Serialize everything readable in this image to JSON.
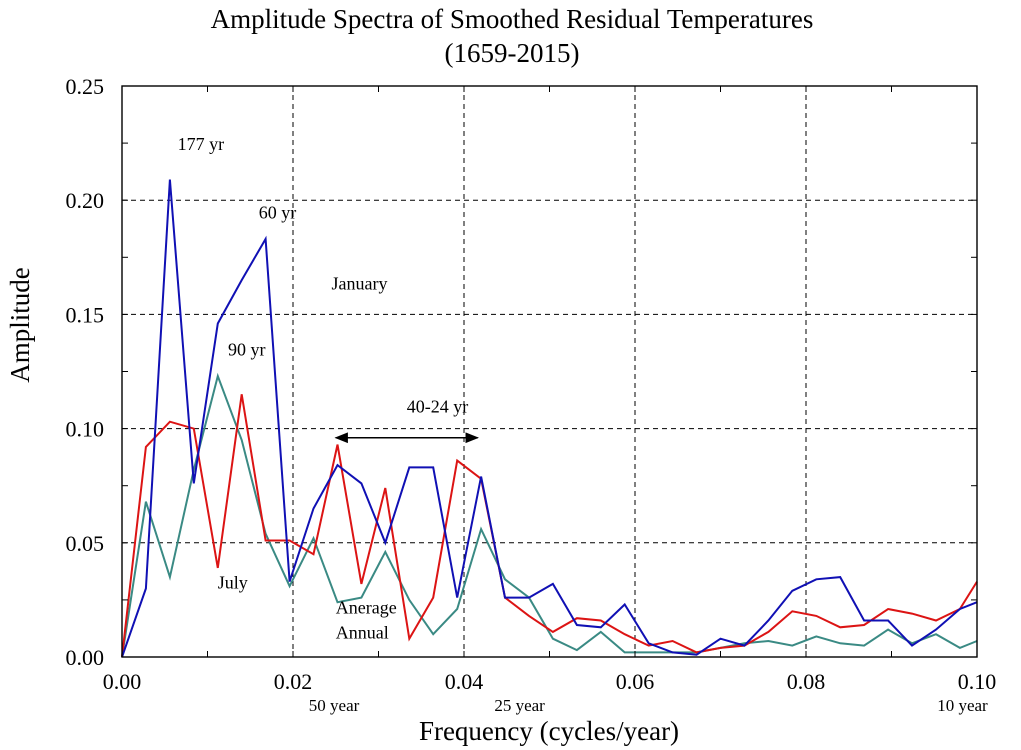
{
  "chart_data": {
    "type": "line",
    "title": "Amplitude Spectra of Smoothed Residual Temperatures",
    "subtitle": "(1659-2015)",
    "xlabel": "Frequency (cycles/year)",
    "ylabel": "Amplitude",
    "xlim": [
      0,
      0.1
    ],
    "ylim": [
      0,
      0.25
    ],
    "grid": true,
    "x_ticks": [
      0.0,
      0.02,
      0.04,
      0.06,
      0.08,
      0.1
    ],
    "x_tick_labels": [
      "0.00",
      "0.02",
      "0.04",
      "0.06",
      "0.08",
      "0.10"
    ],
    "y_ticks": [
      0.0,
      0.05,
      0.1,
      0.15,
      0.2,
      0.25
    ],
    "y_tick_labels": [
      "0.00",
      "0.05",
      "0.10",
      "0.15",
      "0.20",
      "0.25"
    ],
    "series": [
      {
        "name": "January",
        "color": "#1010b4",
        "x": [
          0,
          0.0028,
          0.0056,
          0.0084,
          0.0112,
          0.014,
          0.0168,
          0.0196,
          0.0224,
          0.0252,
          0.028,
          0.0308,
          0.0336,
          0.0364,
          0.0392,
          0.042,
          0.0448,
          0.0476,
          0.0504,
          0.0532,
          0.056,
          0.0588,
          0.0616,
          0.0644,
          0.0672,
          0.07,
          0.0728,
          0.0756,
          0.0784,
          0.0812,
          0.084,
          0.0868,
          0.0896,
          0.0924,
          0.0952,
          0.098,
          0.1
        ],
        "values": [
          0.0,
          0.03,
          0.209,
          0.076,
          0.146,
          0.165,
          0.183,
          0.033,
          0.065,
          0.084,
          0.076,
          0.05,
          0.083,
          0.083,
          0.026,
          0.079,
          0.026,
          0.026,
          0.032,
          0.014,
          0.013,
          0.023,
          0.006,
          0.002,
          0.001,
          0.008,
          0.005,
          0.016,
          0.029,
          0.034,
          0.035,
          0.016,
          0.016,
          0.005,
          0.012,
          0.021,
          0.024
        ]
      },
      {
        "name": "July",
        "color": "#dc1414",
        "x": [
          0,
          0.0028,
          0.0056,
          0.0084,
          0.0112,
          0.014,
          0.0168,
          0.0196,
          0.0224,
          0.0252,
          0.028,
          0.0308,
          0.0336,
          0.0364,
          0.0392,
          0.042,
          0.0448,
          0.0476,
          0.0504,
          0.0532,
          0.056,
          0.0588,
          0.0616,
          0.0644,
          0.0672,
          0.07,
          0.0728,
          0.0756,
          0.0784,
          0.0812,
          0.084,
          0.0868,
          0.0896,
          0.0924,
          0.0952,
          0.098,
          0.1
        ],
        "values": [
          0.0,
          0.092,
          0.103,
          0.1,
          0.039,
          0.115,
          0.051,
          0.051,
          0.045,
          0.093,
          0.032,
          0.074,
          0.008,
          0.026,
          0.086,
          0.078,
          0.026,
          0.018,
          0.011,
          0.017,
          0.016,
          0.01,
          0.005,
          0.007,
          0.002,
          0.004,
          0.005,
          0.011,
          0.02,
          0.018,
          0.013,
          0.014,
          0.021,
          0.019,
          0.016,
          0.021,
          0.033
        ]
      },
      {
        "name": "Anerage Annual",
        "color": "#3a8a84",
        "x": [
          0,
          0.0028,
          0.0056,
          0.0084,
          0.0112,
          0.014,
          0.0168,
          0.0196,
          0.0224,
          0.0252,
          0.028,
          0.0308,
          0.0336,
          0.0364,
          0.0392,
          0.042,
          0.0448,
          0.0476,
          0.0504,
          0.0532,
          0.056,
          0.0588,
          0.0616,
          0.0644,
          0.0672,
          0.07,
          0.0728,
          0.0756,
          0.0784,
          0.0812,
          0.084,
          0.0868,
          0.0896,
          0.0924,
          0.0952,
          0.098,
          0.1
        ],
        "values": [
          0.0,
          0.068,
          0.035,
          0.082,
          0.123,
          0.095,
          0.054,
          0.031,
          0.052,
          0.024,
          0.026,
          0.046,
          0.025,
          0.01,
          0.021,
          0.056,
          0.034,
          0.026,
          0.008,
          0.003,
          0.011,
          0.002,
          0.002,
          0.002,
          0.002,
          0.004,
          0.006,
          0.007,
          0.005,
          0.009,
          0.006,
          0.005,
          0.012,
          0.006,
          0.01,
          0.004,
          0.007
        ]
      }
    ],
    "annotations": [
      {
        "text": "177 yr",
        "x": 0.0065,
        "y": 0.222
      },
      {
        "text": "60 yr",
        "x": 0.016,
        "y": 0.192
      },
      {
        "text": "90 yr",
        "x": 0.0124,
        "y": 0.132
      },
      {
        "text": "40-24 yr",
        "x": 0.0333,
        "y": 0.107
      },
      {
        "text": "January",
        "x": 0.0245,
        "y": 0.161,
        "color": "#1010b4"
      },
      {
        "text": "July",
        "x": 0.0112,
        "y": 0.03,
        "color": "#dc1414"
      },
      {
        "text": "Anerage",
        "x": 0.025,
        "y": 0.019,
        "color": "#3a8a84"
      },
      {
        "text": "Annual",
        "x": 0.025,
        "y": 0.008,
        "color": "#3a8a84"
      }
    ],
    "arrow": {
      "from": 0.025,
      "to": 0.0416,
      "y": 0.096
    },
    "period_labels": [
      {
        "text": "50 year",
        "x": 0.0248
      },
      {
        "text": "25 year",
        "x": 0.0465
      },
      {
        "text": "10 year",
        "x": 0.0983
      }
    ]
  }
}
